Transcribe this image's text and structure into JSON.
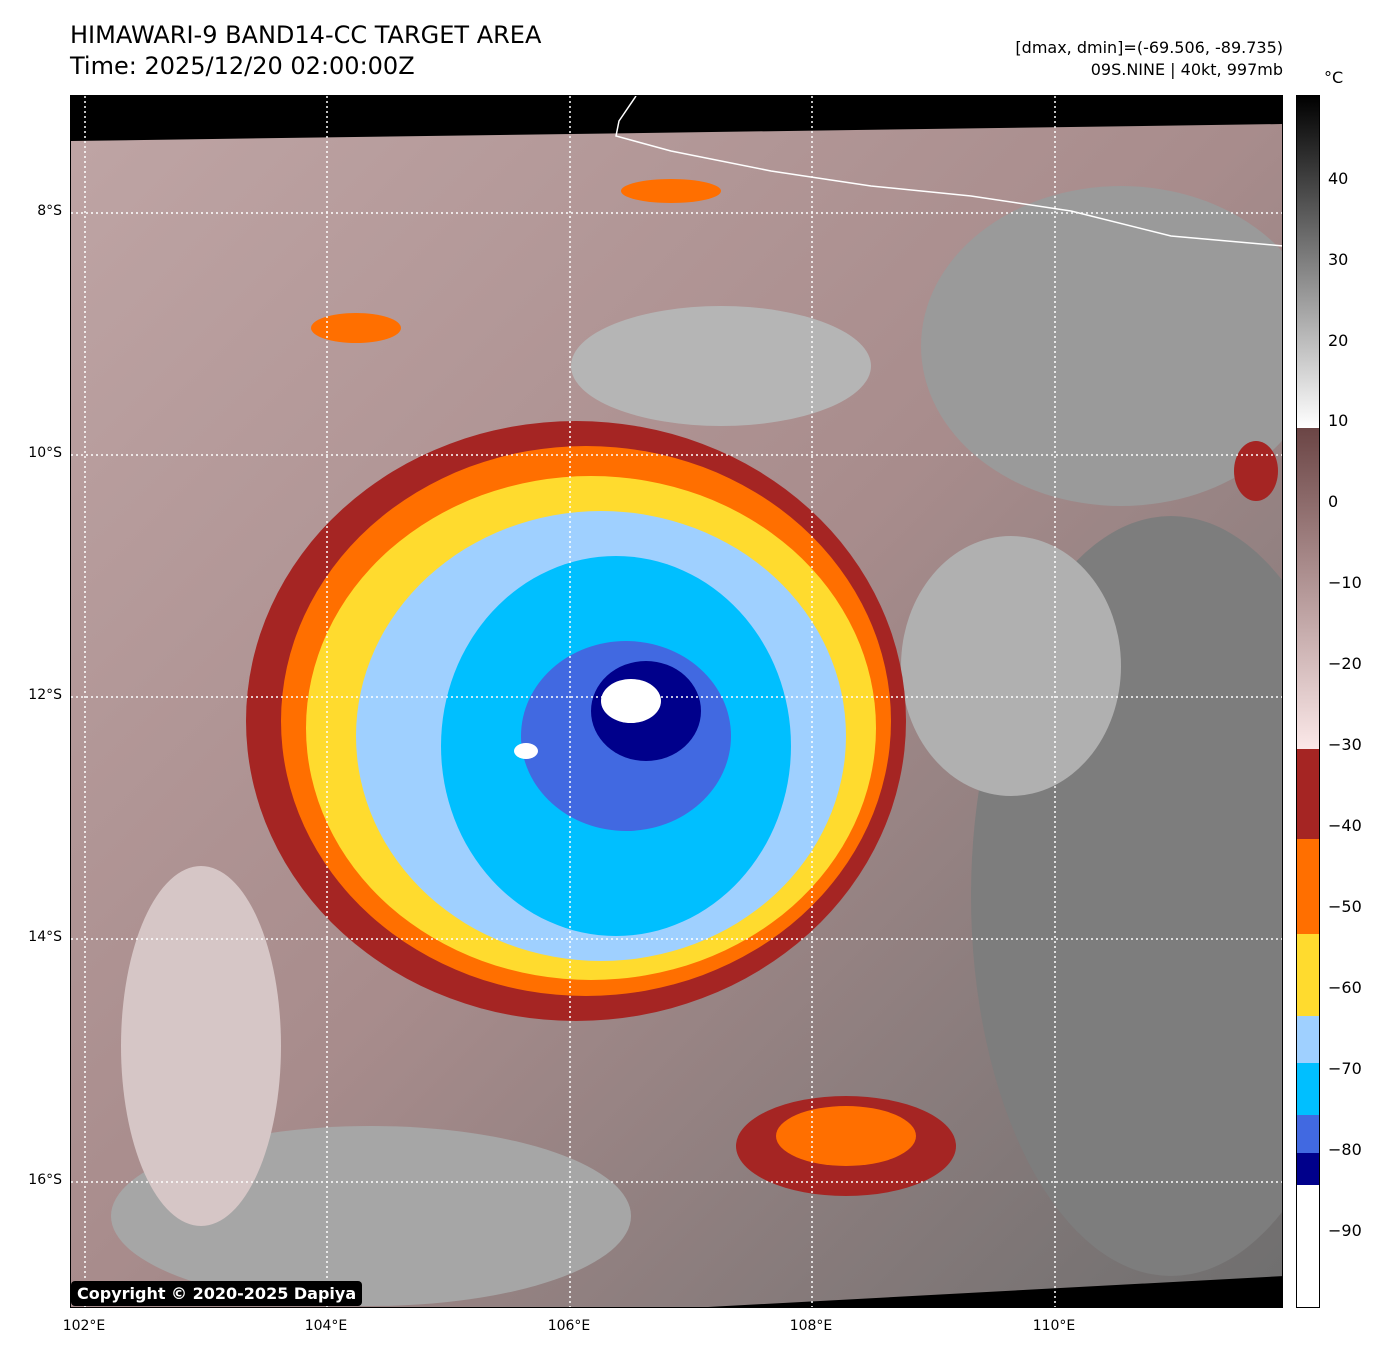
{
  "title": {
    "line1": "HIMAWARI-9 BAND14-CC TARGET AREA",
    "line2": "Time: 2025/12/20 02:00:00Z"
  },
  "info": {
    "range": "[dmax, dmin]=(-69.506, -89.735)",
    "storm": "09S.NINE | 40kt, 997mb"
  },
  "axes": {
    "y_ticks": [
      "8°S",
      "10°S",
      "12°S",
      "14°S",
      "16°S"
    ],
    "x_ticks": [
      "102°E",
      "104°E",
      "106°E",
      "108°E",
      "110°E"
    ]
  },
  "colorbar": {
    "unit": "°C",
    "labels": [
      "40",
      "30",
      "20",
      "10",
      "0",
      "−10",
      "−20",
      "−30",
      "−40",
      "−50",
      "−60",
      "−70",
      "−80",
      "−90"
    ]
  },
  "copyright": "Copyright © 2020-2025 Dapiya"
}
